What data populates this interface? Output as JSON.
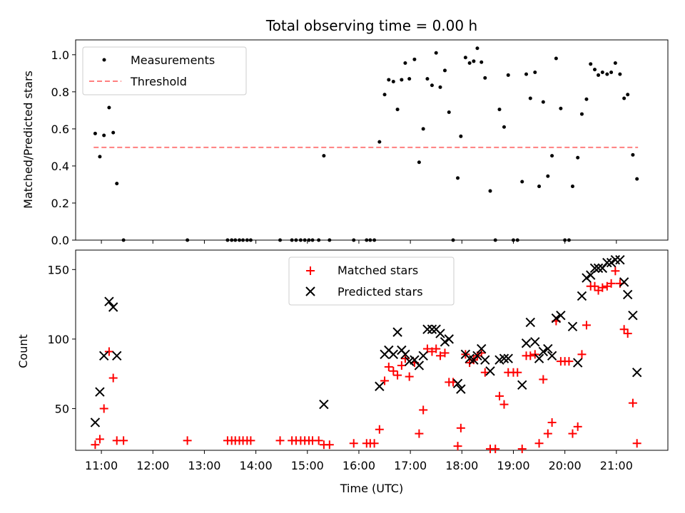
{
  "chart_data": [
    {
      "type": "scatter",
      "title": "Total observing time = 0.00 h",
      "xlabel": "",
      "ylabel": "Matched/Predicted stars",
      "xlim": [
        10.5,
        22.0
      ],
      "ylim": [
        0,
        1.08
      ],
      "yticks": [
        0.0,
        0.2,
        0.4,
        0.6,
        0.8,
        1.0
      ],
      "ytick_labels": [
        "0.0",
        "0.2",
        "0.4",
        "0.6",
        "0.8",
        "1.0"
      ],
      "legend_position": "upper-left",
      "series": [
        {
          "name": "Measurements",
          "color": "#000000",
          "marker": "dot",
          "points": [
            [
              10.88,
              0.575
            ],
            [
              10.97,
              0.45
            ],
            [
              11.05,
              0.565
            ],
            [
              11.15,
              0.715
            ],
            [
              11.23,
              0.58
            ],
            [
              11.3,
              0.305
            ],
            [
              11.43,
              0.0
            ],
            [
              12.67,
              0.0
            ],
            [
              13.45,
              0.0
            ],
            [
              13.53,
              0.0
            ],
            [
              13.6,
              0.0
            ],
            [
              13.68,
              0.0
            ],
            [
              13.75,
              0.0
            ],
            [
              13.83,
              0.0
            ],
            [
              13.9,
              0.0
            ],
            [
              14.47,
              0.0
            ],
            [
              14.7,
              0.0
            ],
            [
              14.78,
              0.0
            ],
            [
              14.87,
              0.0
            ],
            [
              14.95,
              0.0
            ],
            [
              15.03,
              0.0
            ],
            [
              15.1,
              0.0
            ],
            [
              15.22,
              0.0
            ],
            [
              15.32,
              0.455
            ],
            [
              15.43,
              0.0
            ],
            [
              15.9,
              0.0
            ],
            [
              16.15,
              0.0
            ],
            [
              16.22,
              0.0
            ],
            [
              16.3,
              0.0
            ],
            [
              16.4,
              0.53
            ],
            [
              16.5,
              0.785
            ],
            [
              16.58,
              0.865
            ],
            [
              16.67,
              0.855
            ],
            [
              16.75,
              0.705
            ],
            [
              16.83,
              0.865
            ],
            [
              16.9,
              0.955
            ],
            [
              16.98,
              0.87
            ],
            [
              17.08,
              0.975
            ],
            [
              17.17,
              0.42
            ],
            [
              17.25,
              0.6
            ],
            [
              17.33,
              0.87
            ],
            [
              17.42,
              0.835
            ],
            [
              17.5,
              1.01
            ],
            [
              17.58,
              0.825
            ],
            [
              17.67,
              0.915
            ],
            [
              17.75,
              0.69
            ],
            [
              17.83,
              0.0
            ],
            [
              17.92,
              0.335
            ],
            [
              17.98,
              0.56
            ],
            [
              18.07,
              0.985
            ],
            [
              18.15,
              0.955
            ],
            [
              18.23,
              0.965
            ],
            [
              18.3,
              1.035
            ],
            [
              18.38,
              0.96
            ],
            [
              18.45,
              0.875
            ],
            [
              18.55,
              0.265
            ],
            [
              18.65,
              0.0
            ],
            [
              18.73,
              0.705
            ],
            [
              18.82,
              0.61
            ],
            [
              18.9,
              0.89
            ],
            [
              19.0,
              0.0
            ],
            [
              19.08,
              0.0
            ],
            [
              19.17,
              0.315
            ],
            [
              19.25,
              0.895
            ],
            [
              19.33,
              0.765
            ],
            [
              19.42,
              0.905
            ],
            [
              19.5,
              0.29
            ],
            [
              19.58,
              0.745
            ],
            [
              19.67,
              0.345
            ],
            [
              19.75,
              0.455
            ],
            [
              19.83,
              0.98
            ],
            [
              19.92,
              0.71
            ],
            [
              20.0,
              0.0
            ],
            [
              20.08,
              0.0
            ],
            [
              20.15,
              0.29
            ],
            [
              20.25,
              0.445
            ],
            [
              20.33,
              0.68
            ],
            [
              20.42,
              0.76
            ],
            [
              20.5,
              0.95
            ],
            [
              20.58,
              0.92
            ],
            [
              20.65,
              0.89
            ],
            [
              20.73,
              0.905
            ],
            [
              20.82,
              0.895
            ],
            [
              20.9,
              0.905
            ],
            [
              20.98,
              0.955
            ],
            [
              21.07,
              0.895
            ],
            [
              21.15,
              0.765
            ],
            [
              21.22,
              0.785
            ],
            [
              21.32,
              0.46
            ],
            [
              21.4,
              0.33
            ]
          ]
        },
        {
          "name": "Threshold",
          "color": "#ff7f7f",
          "style": "dashed",
          "points": [
            [
              10.85,
              0.5
            ],
            [
              21.42,
              0.5
            ]
          ]
        }
      ]
    },
    {
      "type": "scatter",
      "title": "",
      "xlabel": "Time (UTC)",
      "ylabel": "Count",
      "xlim": [
        10.5,
        22.0
      ],
      "ylim": [
        20,
        164
      ],
      "xticks": [
        11,
        12,
        13,
        14,
        15,
        16,
        17,
        18,
        19,
        20,
        21
      ],
      "xtick_labels": [
        "11:00",
        "12:00",
        "13:00",
        "14:00",
        "15:00",
        "16:00",
        "17:00",
        "18:00",
        "19:00",
        "20:00",
        "21:00"
      ],
      "yticks": [
        50,
        100,
        150
      ],
      "ytick_labels": [
        "50",
        "100",
        "150"
      ],
      "legend_position": "upper-center",
      "series": [
        {
          "name": "Matched stars",
          "color": "#ff0000",
          "marker": "plus",
          "points": [
            [
              10.88,
              24
            ],
            [
              10.97,
              28
            ],
            [
              11.05,
              50
            ],
            [
              11.15,
              91
            ],
            [
              11.23,
              72
            ],
            [
              11.3,
              27
            ],
            [
              11.43,
              27
            ],
            [
              12.67,
              27
            ],
            [
              13.45,
              27
            ],
            [
              13.53,
              27
            ],
            [
              13.6,
              27
            ],
            [
              13.68,
              27
            ],
            [
              13.75,
              27
            ],
            [
              13.83,
              27
            ],
            [
              13.9,
              27
            ],
            [
              14.47,
              27
            ],
            [
              14.7,
              27
            ],
            [
              14.78,
              27
            ],
            [
              14.87,
              27
            ],
            [
              14.95,
              27
            ],
            [
              15.03,
              27
            ],
            [
              15.1,
              27
            ],
            [
              15.22,
              27
            ],
            [
              15.32,
              24
            ],
            [
              15.43,
              24
            ],
            [
              15.9,
              25
            ],
            [
              16.15,
              25
            ],
            [
              16.22,
              25
            ],
            [
              16.3,
              25
            ],
            [
              16.4,
              35
            ],
            [
              16.5,
              70
            ],
            [
              16.58,
              80
            ],
            [
              16.67,
              77
            ],
            [
              16.75,
              74
            ],
            [
              16.83,
              81
            ],
            [
              16.9,
              86
            ],
            [
              16.98,
              73
            ],
            [
              17.08,
              83
            ],
            [
              17.17,
              32
            ],
            [
              17.25,
              49
            ],
            [
              17.33,
              93
            ],
            [
              17.42,
              91
            ],
            [
              17.5,
              93
            ],
            [
              17.58,
              88
            ],
            [
              17.67,
              90
            ],
            [
              17.75,
              69
            ],
            [
              17.83,
              69
            ],
            [
              17.92,
              23
            ],
            [
              17.98,
              36
            ],
            [
              18.07,
              89
            ],
            [
              18.15,
              83
            ],
            [
              18.23,
              85
            ],
            [
              18.3,
              88
            ],
            [
              18.38,
              90
            ],
            [
              18.45,
              76
            ],
            [
              18.55,
              21
            ],
            [
              18.65,
              21
            ],
            [
              18.73,
              59
            ],
            [
              18.82,
              53
            ],
            [
              18.9,
              76
            ],
            [
              19.0,
              76
            ],
            [
              19.08,
              76
            ],
            [
              19.17,
              21
            ],
            [
              19.25,
              88
            ],
            [
              19.33,
              88
            ],
            [
              19.42,
              89
            ],
            [
              19.5,
              25
            ],
            [
              19.58,
              71
            ],
            [
              19.67,
              32
            ],
            [
              19.75,
              40
            ],
            [
              19.83,
              113
            ],
            [
              19.92,
              84
            ],
            [
              20.0,
              84
            ],
            [
              20.08,
              84
            ],
            [
              20.15,
              32
            ],
            [
              20.25,
              37
            ],
            [
              20.33,
              89
            ],
            [
              20.42,
              110
            ],
            [
              20.5,
              138
            ],
            [
              20.58,
              138
            ],
            [
              20.65,
              135
            ],
            [
              20.73,
              137
            ],
            [
              20.82,
              138
            ],
            [
              20.9,
              140
            ],
            [
              20.98,
              149
            ],
            [
              21.07,
              140
            ],
            [
              21.15,
              107
            ],
            [
              21.22,
              104
            ],
            [
              21.32,
              54
            ],
            [
              21.4,
              25
            ]
          ]
        },
        {
          "name": "Predicted stars",
          "color": "#000000",
          "marker": "x",
          "points": [
            [
              10.88,
              40
            ],
            [
              10.97,
              62
            ],
            [
              11.05,
              88
            ],
            [
              11.15,
              127
            ],
            [
              11.23,
              123
            ],
            [
              11.3,
              88
            ],
            [
              15.32,
              53
            ],
            [
              16.4,
              66
            ],
            [
              16.5,
              89
            ],
            [
              16.58,
              92
            ],
            [
              16.67,
              89
            ],
            [
              16.75,
              105
            ],
            [
              16.83,
              92
            ],
            [
              16.9,
              89
            ],
            [
              16.98,
              84
            ],
            [
              17.08,
              85
            ],
            [
              17.17,
              81
            ],
            [
              17.25,
              88
            ],
            [
              17.33,
              107
            ],
            [
              17.42,
              107
            ],
            [
              17.5,
              107
            ],
            [
              17.58,
              104
            ],
            [
              17.67,
              98
            ],
            [
              17.75,
              100
            ],
            [
              17.92,
              68
            ],
            [
              17.98,
              64
            ],
            [
              18.07,
              89
            ],
            [
              18.15,
              86
            ],
            [
              18.23,
              85
            ],
            [
              18.3,
              88
            ],
            [
              18.38,
              93
            ],
            [
              18.45,
              85
            ],
            [
              18.55,
              77
            ],
            [
              18.73,
              85
            ],
            [
              18.82,
              86
            ],
            [
              18.9,
              86
            ],
            [
              19.17,
              67
            ],
            [
              19.25,
              97
            ],
            [
              19.33,
              112
            ],
            [
              19.42,
              98
            ],
            [
              19.5,
              86
            ],
            [
              19.58,
              91
            ],
            [
              19.67,
              93
            ],
            [
              19.75,
              88
            ],
            [
              19.83,
              115
            ],
            [
              19.92,
              117
            ],
            [
              20.15,
              109
            ],
            [
              20.25,
              83
            ],
            [
              20.33,
              131
            ],
            [
              20.42,
              144
            ],
            [
              20.5,
              146
            ],
            [
              20.58,
              151
            ],
            [
              20.65,
              151
            ],
            [
              20.73,
              151
            ],
            [
              20.82,
              155
            ],
            [
              20.9,
              155
            ],
            [
              20.98,
              157
            ],
            [
              21.07,
              157
            ],
            [
              21.15,
              141
            ],
            [
              21.22,
              132
            ],
            [
              21.32,
              117
            ],
            [
              21.4,
              76
            ]
          ]
        }
      ]
    }
  ]
}
